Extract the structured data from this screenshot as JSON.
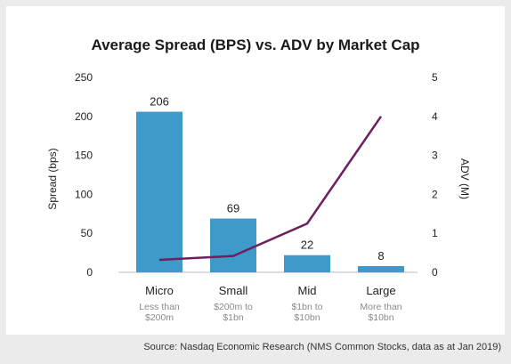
{
  "chart_data": {
    "type": "bar",
    "title": "Average Spread (BPS) vs. ADV by Market Cap",
    "categories": [
      "Micro",
      "Small",
      "Mid",
      "Large"
    ],
    "category_sublabels": [
      [
        "Less than",
        "$200m"
      ],
      [
        "$200m to",
        "$1bn"
      ],
      [
        "$1bn to",
        "$10bn"
      ],
      [
        "More than",
        "$10bn"
      ]
    ],
    "y_left": {
      "label": "Spread (bps)",
      "range": [
        0,
        250
      ],
      "ticks": [
        "0",
        "50",
        "100",
        "150",
        "200",
        "250"
      ]
    },
    "y_right": {
      "label": "ADV (M)",
      "range": [
        0,
        5
      ],
      "ticks": [
        "0",
        "1",
        "2",
        "3",
        "4",
        "5"
      ]
    },
    "series": [
      {
        "type": "bar",
        "axis": "left",
        "values": [
          206,
          69,
          22,
          8
        ],
        "data_labels": [
          "206",
          "69",
          "22",
          "8"
        ],
        "color": "#3d9ac9"
      },
      {
        "type": "line",
        "axis": "right",
        "values": [
          0.32,
          0.42,
          1.25,
          4.0
        ],
        "color": "#6d1f5e"
      }
    ],
    "grid": false,
    "legend": "none"
  },
  "source": "Source: Nasdaq Economic Research (NMS Common Stocks, data as at Jan 2019)"
}
